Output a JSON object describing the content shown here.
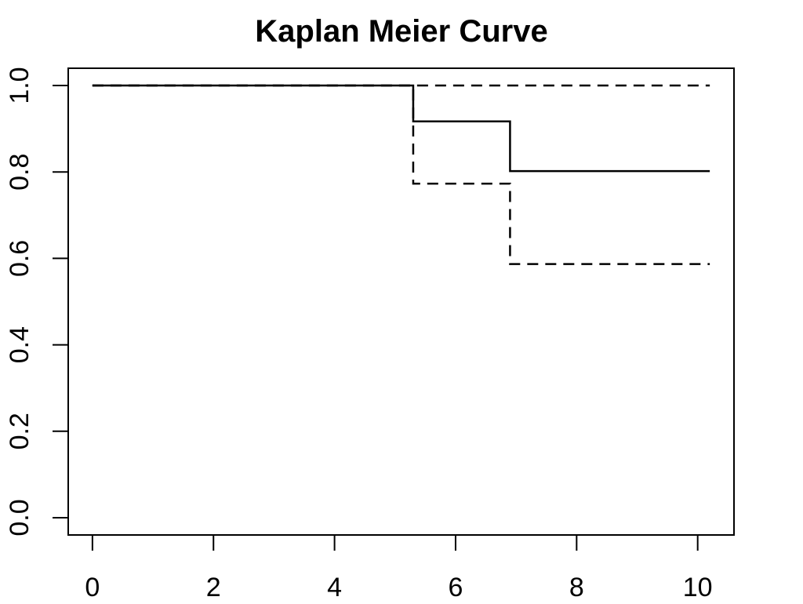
{
  "chart_data": {
    "type": "line",
    "title": "Kaplan Meier Curve",
    "xlabel": "",
    "ylabel": "",
    "xlim": [
      -0.4,
      10.6
    ],
    "ylim": [
      -0.04,
      1.04
    ],
    "x_ticks": [
      "0",
      "2",
      "4",
      "6",
      "8",
      "10"
    ],
    "y_ticks": [
      "0.0",
      "0.2",
      "0.4",
      "0.6",
      "0.8",
      "1.0"
    ],
    "grid": false,
    "series": [
      {
        "style": "solid",
        "color": "#000000",
        "points": [
          [
            0,
            1.0
          ],
          [
            5.3,
            1.0
          ],
          [
            5.3,
            0.917
          ],
          [
            6.9,
            0.917
          ],
          [
            6.9,
            0.802
          ],
          [
            10.2,
            0.802
          ]
        ]
      },
      {
        "style": "dashed",
        "color": "#000000",
        "points": [
          [
            0,
            1.0
          ],
          [
            5.3,
            1.0
          ],
          [
            5.3,
            0.773
          ],
          [
            6.9,
            0.773
          ],
          [
            6.9,
            0.587
          ],
          [
            10.2,
            0.587
          ]
        ]
      },
      {
        "style": "dashed",
        "color": "#000000",
        "points": [
          [
            0,
            1.0
          ],
          [
            10.2,
            1.0
          ]
        ]
      }
    ]
  }
}
